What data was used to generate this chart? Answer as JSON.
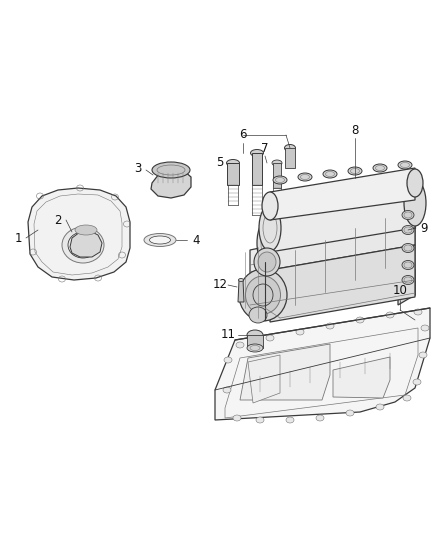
{
  "bg_color": "#ffffff",
  "line_color": "#3a3a3a",
  "mid_gray": "#777777",
  "light_gray": "#bbbbbb",
  "label_color": "#111111",
  "fig_width": 4.38,
  "fig_height": 5.33,
  "dpi": 100
}
